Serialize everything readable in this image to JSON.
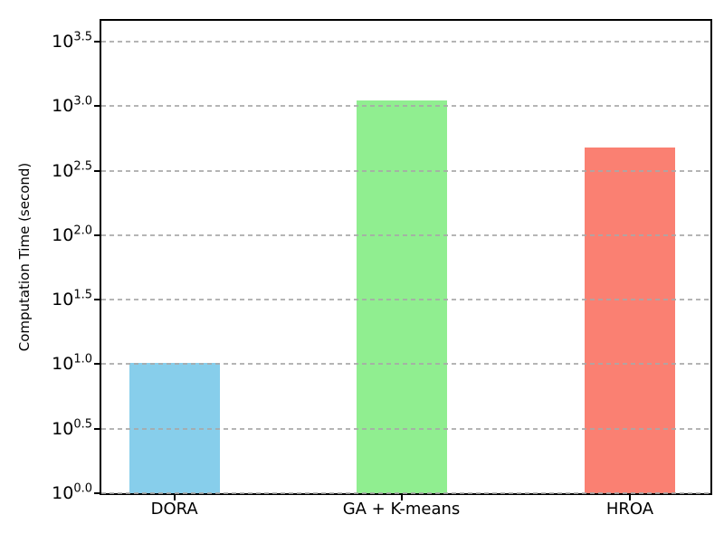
{
  "figure": {
    "background": "#ffffff",
    "axes_edge_color": "#000000"
  },
  "chart_data": {
    "type": "bar",
    "title": "",
    "xlabel": "",
    "ylabel": "Computation Time (second)",
    "categories": [
      "DORA",
      "GA + K-means",
      "HROA"
    ],
    "values": [
      10.2,
      1100,
      480
    ],
    "bar_colors": [
      "#87CEEB",
      "#90EE90",
      "#FA8072"
    ],
    "yscale": "log10",
    "ytick_base": "10",
    "ytick_exponents": [
      "0.0",
      "0.5",
      "1.0",
      "1.5",
      "2.0",
      "2.5",
      "3.0",
      "3.5"
    ],
    "ylim_log": [
      0,
      3.661
    ],
    "grid": "horizontal-dashed-over-bars",
    "grid_color": "#a8a8a8",
    "legend": "none"
  }
}
